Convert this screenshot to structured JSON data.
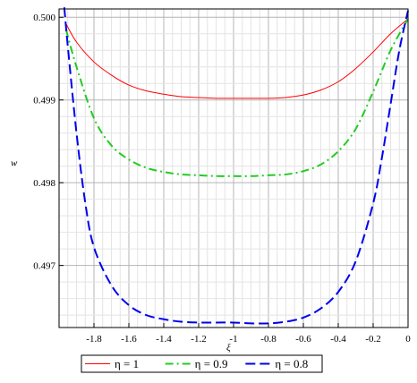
{
  "chart_data": {
    "type": "line",
    "title": "",
    "xlabel": "ξ",
    "ylabel": "w",
    "xlim": [
      -2.0,
      0.0
    ],
    "ylim": [
      0.49625,
      0.5001
    ],
    "x_ticks": [
      -1.8,
      -1.6,
      -1.4,
      -1.2,
      -1.0,
      -0.8,
      -0.6,
      -0.4,
      -0.2,
      0
    ],
    "x_tick_labels": [
      "-1.8",
      "-1.6",
      "-1.4",
      "-1.2",
      "-1",
      "-0.8",
      "-0.6",
      "-0.4",
      "-0.2",
      "0"
    ],
    "y_ticks": [
      0.497,
      0.498,
      0.499,
      0.5
    ],
    "y_tick_labels": [
      "0.497",
      "0.498",
      "0.499",
      "0.500"
    ],
    "grid": true,
    "legend_position": "bottom",
    "series": [
      {
        "name": "η = 1",
        "color": "#ff0000",
        "style": "solid",
        "x": [
          -1.96,
          -1.9,
          -1.8,
          -1.7,
          -1.6,
          -1.5,
          -1.4,
          -1.3,
          -1.2,
          -1.1,
          -1.0,
          -0.9,
          -0.8,
          -0.7,
          -0.6,
          -0.5,
          -0.4,
          -0.3,
          -0.2,
          -0.1,
          0.0
        ],
        "values": [
          0.49992,
          0.4997,
          0.49946,
          0.4993,
          0.49918,
          0.49911,
          0.49907,
          0.49904,
          0.49903,
          0.49902,
          0.49902,
          0.49902,
          0.49902,
          0.49903,
          0.49906,
          0.49912,
          0.49922,
          0.49938,
          0.49958,
          0.4998,
          0.49998
        ]
      },
      {
        "name": "η = 0.9",
        "color": "#22cc22",
        "style": "dashdot",
        "x": [
          -1.96,
          -1.9,
          -1.8,
          -1.7,
          -1.6,
          -1.5,
          -1.4,
          -1.3,
          -1.2,
          -1.1,
          -1.0,
          -0.9,
          -0.8,
          -0.7,
          -0.6,
          -0.5,
          -0.4,
          -0.3,
          -0.2,
          -0.1,
          0.0
        ],
        "values": [
          0.49985,
          0.4994,
          0.49878,
          0.49845,
          0.49828,
          0.49818,
          0.49813,
          0.4981,
          0.49809,
          0.49808,
          0.49808,
          0.49808,
          0.49809,
          0.4981,
          0.49814,
          0.49822,
          0.49838,
          0.49865,
          0.4991,
          0.4996,
          0.49998
        ]
      },
      {
        "name": "η = 0.8",
        "color": "#0000ee",
        "style": "dashed",
        "x": [
          -1.97,
          -1.95,
          -1.9,
          -1.85,
          -1.8,
          -1.7,
          -1.6,
          -1.5,
          -1.4,
          -1.3,
          -1.2,
          -1.1,
          -1.0,
          -0.9,
          -0.8,
          -0.7,
          -0.6,
          -0.5,
          -0.4,
          -0.3,
          -0.2,
          -0.15,
          -0.1,
          -0.05,
          0.0
        ],
        "values": [
          0.50012,
          0.49965,
          0.4986,
          0.49776,
          0.49722,
          0.49676,
          0.49652,
          0.4964,
          0.49635,
          0.49632,
          0.49631,
          0.49631,
          0.49631,
          0.4963,
          0.4963,
          0.49632,
          0.49637,
          0.49648,
          0.49668,
          0.49705,
          0.49775,
          0.4983,
          0.49895,
          0.4996,
          0.50008
        ]
      }
    ]
  }
}
